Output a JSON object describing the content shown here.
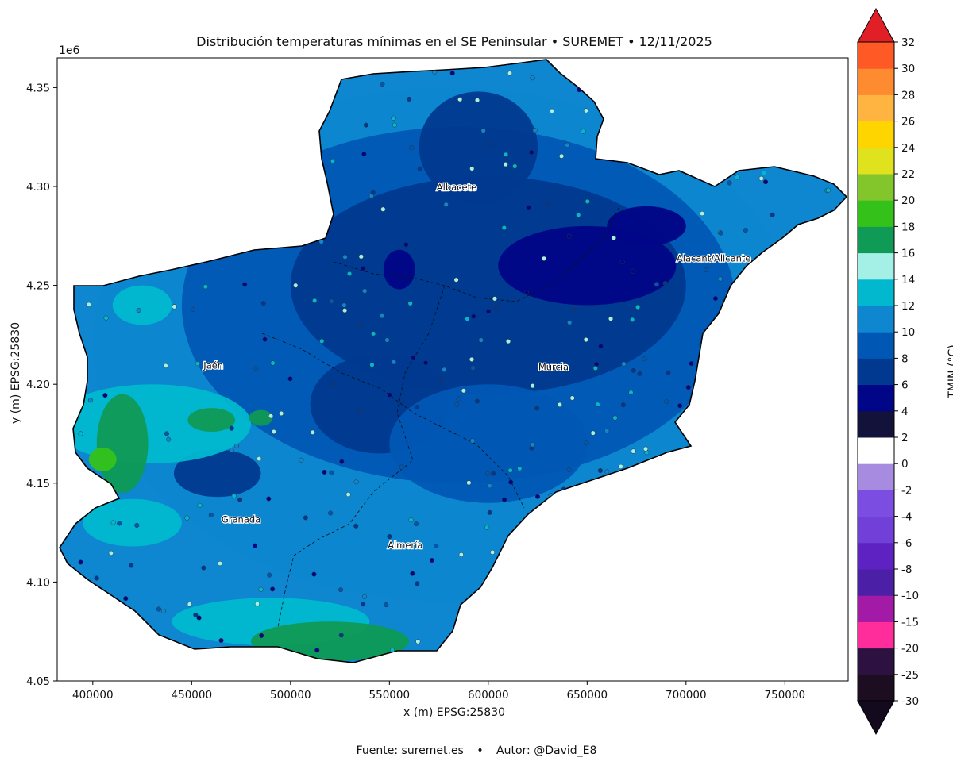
{
  "title": "Distribución temperaturas mínimas en el SE Peninsular • SUREMET • 12/11/2025",
  "footer": {
    "source": "Fuente: suremet.es",
    "separator": "•",
    "author": "Autor: @David_E8"
  },
  "axes": {
    "xlabel": "x (m) EPSG:25830",
    "ylabel": "y (m) EPSG:25830",
    "y_offset_label": "1e6",
    "x_ticks": [
      "400000",
      "450000",
      "500000",
      "550000",
      "600000",
      "650000",
      "700000",
      "750000"
    ],
    "y_ticks": [
      "4.05",
      "4.10",
      "4.15",
      "4.20",
      "4.25",
      "4.30",
      "4.35"
    ]
  },
  "cities": [
    {
      "name": "Albacete"
    },
    {
      "name": "Alacant/Alicante"
    },
    {
      "name": "Jaén"
    },
    {
      "name": "Murcia"
    },
    {
      "name": "Granada"
    },
    {
      "name": "Almería"
    }
  ],
  "colorbar": {
    "label": "TMIN (°C)",
    "ticks": [
      "-30",
      "-25",
      "-20",
      "-15",
      "-10",
      "-8",
      "-6",
      "-4",
      "-2",
      "0",
      "2",
      "4",
      "6",
      "8",
      "10",
      "12",
      "14",
      "16",
      "18",
      "20",
      "22",
      "24",
      "26",
      "28",
      "30",
      "32"
    ],
    "colors": [
      "#1c0e20",
      "#2d1140",
      "#ff2d9b",
      "#a21aa6",
      "#4b1fa6",
      "#5f22c2",
      "#7040d8",
      "#7b4de0",
      "#a78be0",
      "#ffffff",
      "#12123a",
      "#010587",
      "#00398f",
      "#0057b4",
      "#0e86d0",
      "#01b8cf",
      "#a4f0e6",
      "#0f9a55",
      "#34c21a",
      "#82c62c",
      "#dfe21c",
      "#ffd500",
      "#ffb340",
      "#ff8b30",
      "#ff5a25",
      "#e01f27"
    ],
    "extend_min_color": "#140a1e",
    "extend_max_color": "#e01f27"
  },
  "chart_data": {
    "type": "heatmap",
    "title": "Distribución temperaturas mínimas en el SE Peninsular • SUREMET • 12/11/2025",
    "variable": "TMIN (°C)",
    "date": "12/11/2025",
    "xlabel": "x (m) EPSG:25830",
    "ylabel": "y (m) EPSG:25830",
    "xlim": [
      382000,
      782000
    ],
    "ylim": [
      4050000,
      4365000
    ],
    "x_ticks": [
      400000,
      450000,
      500000,
      550000,
      600000,
      650000,
      700000,
      750000
    ],
    "y_ticks": [
      4050000,
      4100000,
      4150000,
      4200000,
      4250000,
      4300000,
      4350000
    ],
    "color_levels": [
      -30,
      -25,
      -20,
      -15,
      -10,
      -8,
      -6,
      -4,
      -2,
      0,
      2,
      4,
      6,
      8,
      10,
      12,
      14,
      16,
      18,
      20,
      22,
      24,
      26,
      28,
      30,
      32
    ],
    "cities": [
      {
        "name": "Albacete",
        "x": 584000,
        "y": 4298000
      },
      {
        "name": "Alacant/Alicante",
        "x": 714000,
        "y": 4262000
      },
      {
        "name": "Jaén",
        "x": 461000,
        "y": 4208000
      },
      {
        "name": "Murcia",
        "x": 633000,
        "y": 4207000
      },
      {
        "name": "Granada",
        "x": 475000,
        "y": 4130000
      },
      {
        "name": "Almería",
        "x": 558000,
        "y": 4117000
      }
    ],
    "regions": [
      {
        "level": 10,
        "x": 580000,
        "y": 4220000,
        "rx": 180000,
        "ry": 130000
      },
      {
        "level": 8,
        "x": 585000,
        "y": 4240000,
        "rx": 140000,
        "ry": 90000
      },
      {
        "level": 6,
        "x": 600000,
        "y": 4250000,
        "rx": 100000,
        "ry": 55000
      },
      {
        "level": 6,
        "x": 545000,
        "y": 4190000,
        "rx": 35000,
        "ry": 25000
      },
      {
        "level": 6,
        "x": 595000,
        "y": 4320000,
        "rx": 30000,
        "ry": 28000
      },
      {
        "level": 4,
        "x": 650000,
        "y": 4260000,
        "rx": 45000,
        "ry": 20000
      },
      {
        "level": 4,
        "x": 680000,
        "y": 4280000,
        "rx": 20000,
        "ry": 10000
      },
      {
        "level": 4,
        "x": 555000,
        "y": 4258000,
        "rx": 8000,
        "ry": 10000
      },
      {
        "level": 6,
        "x": 463000,
        "y": 4155000,
        "rx": 22000,
        "ry": 12000
      },
      {
        "level": 8,
        "x": 600000,
        "y": 4170000,
        "rx": 50000,
        "ry": 30000
      },
      {
        "level": 12,
        "x": 430000,
        "y": 4180000,
        "rx": 50000,
        "ry": 20000
      },
      {
        "level": 12,
        "x": 425000,
        "y": 4240000,
        "rx": 15000,
        "ry": 10000
      },
      {
        "level": 12,
        "x": 490000,
        "y": 4080000,
        "rx": 50000,
        "ry": 12000
      },
      {
        "level": 12,
        "x": 420000,
        "y": 4130000,
        "rx": 25000,
        "ry": 12000
      },
      {
        "level": 16,
        "x": 415000,
        "y": 4170000,
        "rx": 13000,
        "ry": 25000
      },
      {
        "level": 16,
        "x": 460000,
        "y": 4182000,
        "rx": 12000,
        "ry": 6000
      },
      {
        "level": 16,
        "x": 485000,
        "y": 4183000,
        "rx": 6000,
        "ry": 4000
      },
      {
        "level": 18,
        "x": 405000,
        "y": 4162000,
        "rx": 7000,
        "ry": 6000
      },
      {
        "level": 16,
        "x": 520000,
        "y": 4070000,
        "rx": 40000,
        "ry": 10000
      }
    ]
  }
}
